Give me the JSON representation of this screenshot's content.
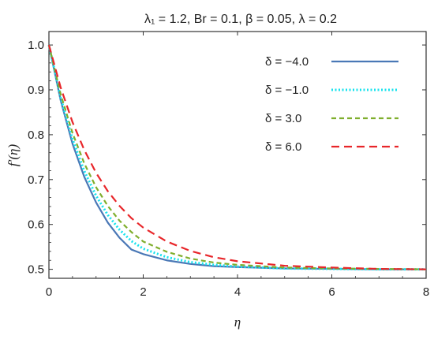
{
  "chart_data": {
    "type": "line",
    "title": "λ₁ = 1.2, Br = 0.1, β = 0.05, λ = 0.2",
    "xlabel": "η",
    "ylabel": "f′(η)",
    "xlim": [
      0,
      8
    ],
    "ylim": [
      0.48,
      1.03
    ],
    "xticks": [
      0,
      2,
      4,
      6,
      8
    ],
    "yticks": [
      0.5,
      0.6,
      0.7,
      0.8,
      0.9,
      1.0
    ],
    "ytick_labels": [
      "0.5",
      "0.6",
      "0.7",
      "0.8",
      "0.9",
      "1.0"
    ],
    "grid": false,
    "legend_position": "top-right",
    "series": [
      {
        "name": "δ = −4.0",
        "color": "#4a78b6",
        "style": "solid",
        "x": [
          0,
          0.25,
          0.5,
          0.75,
          1,
          1.25,
          1.5,
          1.75,
          2,
          2.5,
          3,
          3.5,
          4,
          5,
          6,
          7,
          8
        ],
        "y": [
          1.0,
          0.876,
          0.78,
          0.706,
          0.649,
          0.604,
          0.57,
          0.544,
          0.534,
          0.52,
          0.512,
          0.507,
          0.505,
          0.502,
          0.501,
          0.5,
          0.5
        ]
      },
      {
        "name": "δ = −1.0",
        "color": "#19e3ee",
        "style": "dotted",
        "x": [
          0,
          0.25,
          0.5,
          0.75,
          1,
          1.25,
          1.5,
          1.75,
          2,
          2.5,
          3,
          3.5,
          4,
          5,
          6,
          7,
          8
        ],
        "y": [
          1.0,
          0.882,
          0.79,
          0.719,
          0.664,
          0.621,
          0.588,
          0.563,
          0.546,
          0.527,
          0.516,
          0.51,
          0.506,
          0.502,
          0.501,
          0.5,
          0.5
        ]
      },
      {
        "name": "δ = 3.0",
        "color": "#7fae2d",
        "style": "dashed",
        "x": [
          0,
          0.25,
          0.5,
          0.75,
          1,
          1.25,
          1.5,
          1.75,
          2,
          2.5,
          3,
          3.5,
          4,
          5,
          6,
          7,
          8
        ],
        "y": [
          1.0,
          0.89,
          0.804,
          0.736,
          0.683,
          0.641,
          0.608,
          0.583,
          0.562,
          0.539,
          0.524,
          0.515,
          0.51,
          0.504,
          0.502,
          0.501,
          0.5
        ]
      },
      {
        "name": "δ = 6.0",
        "color": "#e8262a",
        "style": "longdash",
        "x": [
          0,
          0.25,
          0.5,
          0.75,
          1,
          1.25,
          1.5,
          1.75,
          2,
          2.5,
          3,
          3.5,
          4,
          5,
          6,
          7,
          8
        ],
        "y": [
          1.0,
          0.905,
          0.828,
          0.766,
          0.715,
          0.674,
          0.641,
          0.614,
          0.593,
          0.562,
          0.541,
          0.527,
          0.518,
          0.508,
          0.504,
          0.501,
          0.5
        ]
      }
    ]
  }
}
